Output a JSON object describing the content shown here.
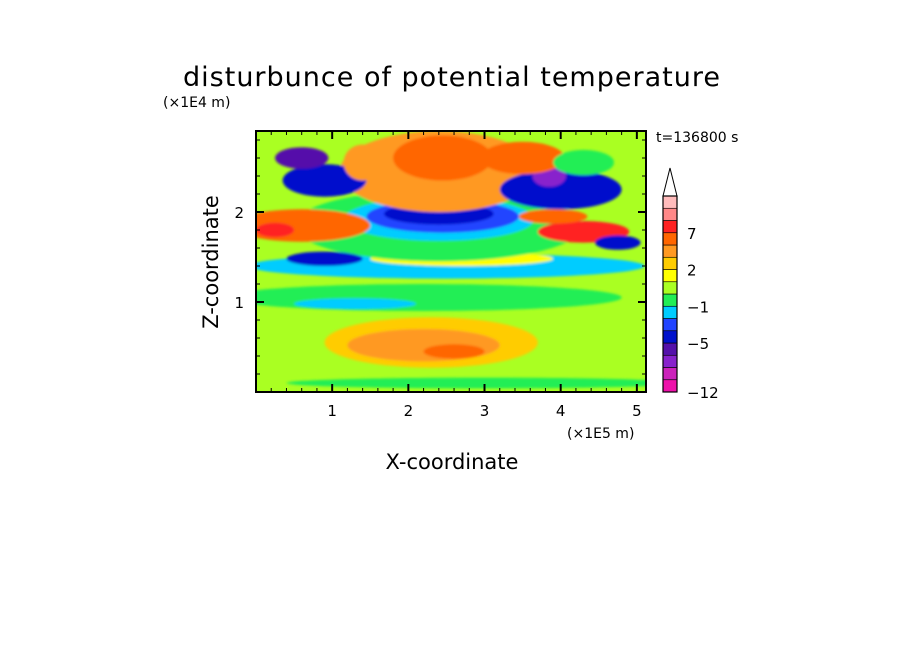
{
  "chart_data": {
    "type": "heatmap",
    "title": "disturbunce of potential temperature",
    "xlabel": "X-coordinate",
    "ylabel": "Z-coordinate",
    "x_unit": "(×1E5 m)",
    "y_unit": "(×1E4 m)",
    "time_label": "t=136800 s",
    "xlim": [
      0,
      5.12
    ],
    "ylim": [
      0,
      2.9
    ],
    "x_ticks": [
      "1",
      "2",
      "3",
      "4",
      "5"
    ],
    "y_ticks": [
      "1",
      "2"
    ],
    "colorbar": {
      "labels": [
        "-12",
        "-5",
        "-1",
        "2",
        "7"
      ],
      "colors": [
        "#ee11aa",
        "#cc22bb",
        "#8822cc",
        "#5511aa",
        "#0011cc",
        "#2244ff",
        "#00ccff",
        "#22ee55",
        "#aaff22",
        "#ffff00",
        "#ffcc00",
        "#ff9922",
        "#ff6600",
        "#ff2222",
        "#ff8888",
        "#ffbbbb"
      ],
      "extend": "max"
    },
    "fields": {
      "background": "#aaff22",
      "regions": [
        {
          "x": 2.3,
          "z": 0.55,
          "rx": 1.4,
          "rz": 0.28,
          "color": "#ffcc00"
        },
        {
          "x": 2.2,
          "z": 0.52,
          "rx": 1.0,
          "rz": 0.18,
          "color": "#ff9922"
        },
        {
          "x": 2.6,
          "z": 0.45,
          "rx": 0.4,
          "rz": 0.08,
          "color": "#ff6600"
        },
        {
          "x": 2.2,
          "z": 1.05,
          "rx": 2.6,
          "rz": 0.15,
          "color": "#22ee55"
        },
        {
          "x": 1.3,
          "z": 0.98,
          "rx": 0.8,
          "rz": 0.06,
          "color": "#00ccff"
        },
        {
          "x": 2.5,
          "z": 1.4,
          "rx": 2.6,
          "rz": 0.14,
          "color": "#00ccff"
        },
        {
          "x": 2.7,
          "z": 1.48,
          "rx": 1.2,
          "rz": 0.08,
          "color": "#ffff00"
        },
        {
          "x": 2.4,
          "z": 1.85,
          "rx": 1.9,
          "rz": 0.4,
          "color": "#22ee55"
        },
        {
          "x": 2.4,
          "z": 1.92,
          "rx": 1.25,
          "rz": 0.24,
          "color": "#00ccff"
        },
        {
          "x": 2.45,
          "z": 1.95,
          "rx": 1.0,
          "rz": 0.18,
          "color": "#2244ff"
        },
        {
          "x": 2.4,
          "z": 1.98,
          "rx": 0.72,
          "rz": 0.12,
          "color": "#0011cc"
        },
        {
          "x": 0.6,
          "z": 1.85,
          "rx": 0.9,
          "rz": 0.18,
          "color": "#ff6600"
        },
        {
          "x": 0.25,
          "z": 1.8,
          "rx": 0.25,
          "rz": 0.08,
          "color": "#ff2222"
        },
        {
          "x": 4.3,
          "z": 1.78,
          "rx": 0.6,
          "rz": 0.12,
          "color": "#ff2222"
        },
        {
          "x": 4.75,
          "z": 1.66,
          "rx": 0.3,
          "rz": 0.08,
          "color": "#0011cc"
        },
        {
          "x": 0.9,
          "z": 1.48,
          "rx": 0.5,
          "rz": 0.08,
          "color": "#0011cc"
        },
        {
          "x": 2.4,
          "z": 2.45,
          "rx": 1.3,
          "rz": 0.45,
          "color": "#ff9922"
        },
        {
          "x": 2.45,
          "z": 2.6,
          "rx": 0.65,
          "rz": 0.25,
          "color": "#ff6600"
        },
        {
          "x": 0.9,
          "z": 2.35,
          "rx": 0.55,
          "rz": 0.18,
          "color": "#0011cc"
        },
        {
          "x": 0.6,
          "z": 2.6,
          "rx": 0.35,
          "rz": 0.12,
          "color": "#5511aa"
        },
        {
          "x": 4.0,
          "z": 2.25,
          "rx": 0.8,
          "rz": 0.22,
          "color": "#0011cc"
        },
        {
          "x": 3.85,
          "z": 2.4,
          "rx": 0.22,
          "rz": 0.12,
          "color": "#8822cc"
        },
        {
          "x": 3.5,
          "z": 2.6,
          "rx": 0.55,
          "rz": 0.18,
          "color": "#ff6600"
        },
        {
          "x": 4.3,
          "z": 2.55,
          "rx": 0.4,
          "rz": 0.14,
          "color": "#22ee55"
        },
        {
          "x": 3.9,
          "z": 1.95,
          "rx": 0.45,
          "rz": 0.08,
          "color": "#ff6600"
        },
        {
          "x": 1.4,
          "z": 2.55,
          "rx": 0.25,
          "rz": 0.2,
          "color": "#ff9922"
        },
        {
          "x": 3.0,
          "z": 0.1,
          "rx": 2.6,
          "rz": 0.06,
          "color": "#22ee55"
        }
      ]
    }
  }
}
